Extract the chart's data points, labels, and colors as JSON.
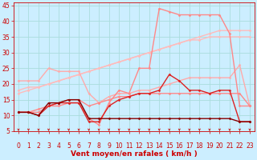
{
  "background_color": "#cceeff",
  "grid_color": "#aadddd",
  "xlabel": "Vent moyen/en rafales ( km/h )",
  "xlabel_color": "#cc0000",
  "xlabel_fontsize": 6.5,
  "tick_color": "#cc0000",
  "tick_fontsize": 5.5,
  "xlim": [
    -0.5,
    23.5
  ],
  "ylim": [
    5,
    46
  ],
  "yticks": [
    5,
    10,
    15,
    20,
    25,
    30,
    35,
    40,
    45
  ],
  "xticks": [
    0,
    1,
    2,
    3,
    4,
    5,
    6,
    7,
    8,
    9,
    10,
    11,
    12,
    13,
    14,
    15,
    16,
    17,
    18,
    19,
    20,
    21,
    22,
    23
  ],
  "series": [
    {
      "x": [
        0,
        1,
        2,
        3,
        4,
        5,
        6,
        7,
        8,
        9,
        10,
        11,
        12,
        13,
        14,
        15,
        16,
        17,
        18,
        19,
        20,
        21,
        22,
        23
      ],
      "y": [
        18,
        19,
        19,
        20,
        21,
        22,
        23,
        24,
        25,
        26,
        27,
        28,
        29,
        30,
        31,
        32,
        33,
        34,
        35,
        36,
        37,
        37,
        37,
        37
      ],
      "color": "#ffbbbb",
      "marker": "D",
      "markersize": 1.5,
      "linewidth": 1.0,
      "zorder": 2
    },
    {
      "x": [
        0,
        1,
        2,
        3,
        4,
        5,
        6,
        7,
        8,
        9,
        10,
        11,
        12,
        13,
        14,
        15,
        16,
        17,
        18,
        19,
        20,
        21,
        22,
        23
      ],
      "y": [
        17,
        18,
        19,
        20,
        21,
        22,
        23,
        24,
        25,
        26,
        27,
        28,
        29,
        30,
        31,
        32,
        33,
        34,
        34,
        35,
        35,
        35,
        35,
        35
      ],
      "color": "#ffbbbb",
      "marker": "D",
      "markersize": 1.5,
      "linewidth": 1.0,
      "zorder": 2
    },
    {
      "x": [
        0,
        1,
        2,
        3,
        4,
        5,
        6,
        7,
        8,
        9,
        10,
        11,
        12,
        13,
        14,
        15,
        16,
        17,
        18,
        19,
        20,
        21,
        22,
        23
      ],
      "y": [
        21,
        21,
        21,
        25,
        24,
        24,
        24,
        17,
        14,
        16,
        17,
        17,
        18,
        18,
        19,
        20,
        21,
        22,
        22,
        22,
        22,
        22,
        26,
        13
      ],
      "color": "#ffaaaa",
      "marker": "D",
      "markersize": 1.5,
      "linewidth": 1.0,
      "zorder": 2
    },
    {
      "x": [
        0,
        1,
        2,
        3,
        4,
        5,
        6,
        7,
        8,
        9,
        10,
        11,
        12,
        13,
        14,
        15,
        16,
        17,
        18,
        19,
        20,
        21,
        22,
        23
      ],
      "y": [
        11,
        11,
        11,
        13,
        13,
        14,
        14,
        9,
        7,
        14,
        18,
        17,
        25,
        25,
        44,
        43,
        42,
        42,
        42,
        42,
        42,
        36,
        13,
        13
      ],
      "color": "#ff8888",
      "marker": "D",
      "markersize": 1.5,
      "linewidth": 1.0,
      "zorder": 3
    },
    {
      "x": [
        0,
        1,
        2,
        3,
        4,
        5,
        6,
        7,
        8,
        9,
        10,
        11,
        12,
        13,
        14,
        15,
        16,
        17,
        18,
        19,
        20,
        21,
        22,
        23
      ],
      "y": [
        11,
        11,
        12,
        13,
        14,
        15,
        15,
        13,
        14,
        15,
        16,
        16,
        17,
        17,
        17,
        17,
        17,
        17,
        17,
        17,
        17,
        17,
        17,
        13
      ],
      "color": "#ff8888",
      "marker": "D",
      "markersize": 1.5,
      "linewidth": 1.0,
      "zorder": 2
    },
    {
      "x": [
        0,
        1,
        2,
        3,
        4,
        5,
        6,
        7,
        8,
        9,
        10,
        11,
        12,
        13,
        14,
        15,
        16,
        17,
        18,
        19,
        20,
        21,
        22,
        23
      ],
      "y": [
        11,
        11,
        10,
        13,
        14,
        14,
        14,
        8,
        8,
        13,
        15,
        16,
        17,
        17,
        18,
        23,
        21,
        18,
        18,
        17,
        18,
        18,
        8,
        8
      ],
      "color": "#dd2222",
      "marker": "D",
      "markersize": 1.5,
      "linewidth": 1.0,
      "zorder": 3
    },
    {
      "x": [
        0,
        1,
        2,
        3,
        4,
        5,
        6,
        7,
        8,
        9,
        10,
        11,
        12,
        13,
        14,
        15,
        16,
        17,
        18,
        19,
        20,
        21,
        22,
        23
      ],
      "y": [
        11,
        11,
        10,
        14,
        14,
        15,
        15,
        9,
        9,
        9,
        9,
        9,
        9,
        9,
        9,
        9,
        9,
        9,
        9,
        9,
        9,
        9,
        8,
        8
      ],
      "color": "#880000",
      "marker": "D",
      "markersize": 1.5,
      "linewidth": 1.0,
      "zorder": 3
    }
  ]
}
